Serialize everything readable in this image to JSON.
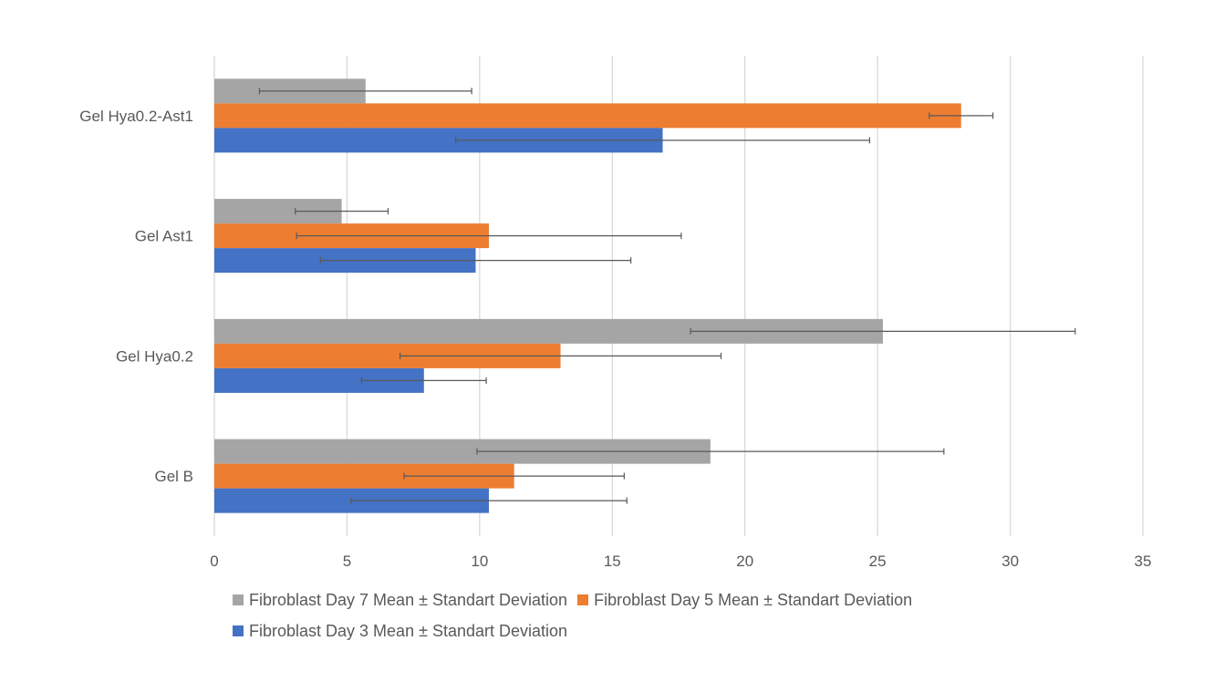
{
  "chart_data": {
    "type": "bar",
    "orientation": "horizontal",
    "title": "",
    "xlabel": "",
    "ylabel": "",
    "xlim": [
      0,
      35
    ],
    "x_ticks": [
      0,
      5,
      10,
      15,
      20,
      25,
      30,
      35
    ],
    "grid": true,
    "legend_position": "bottom",
    "categories": [
      "Gel Hya0.2-Ast1",
      "Gel Ast1",
      "Gel Hya0.2",
      "Gel B"
    ],
    "series": [
      {
        "name": "Fibroblast  Day 7 Mean ± Standart Deviation",
        "color": "#a5a5a5",
        "values": [
          5.7,
          4.8,
          25.2,
          18.7
        ],
        "error": [
          4.0,
          1.75,
          7.25,
          8.8
        ]
      },
      {
        "name": "Fibroblast  Day 5 Mean ± Standart Deviation",
        "color": "#ed7d31",
        "values": [
          28.15,
          10.35,
          13.05,
          11.3
        ],
        "error": [
          1.2,
          7.25,
          6.05,
          4.15
        ]
      },
      {
        "name": "Fibroblast  Day 3 Mean ± Standart Deviation",
        "color": "#4472c4",
        "values": [
          16.9,
          9.85,
          7.9,
          10.35
        ],
        "error": [
          7.8,
          5.85,
          2.35,
          5.2
        ]
      }
    ]
  }
}
